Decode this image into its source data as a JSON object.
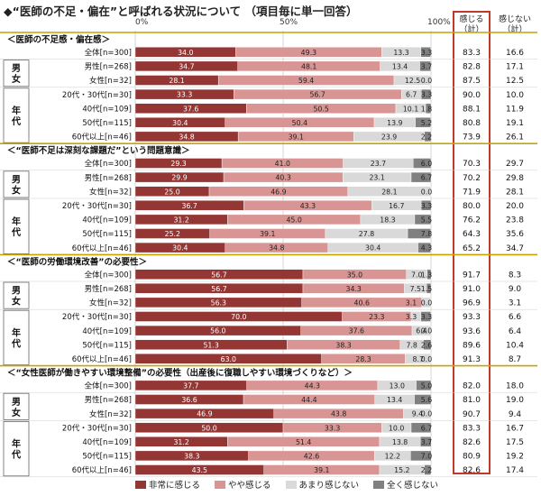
{
  "title": "◆“医師の不足・偏在”と呼ばれる状況について （項目毎に単一回答）",
  "axis": {
    "t0": "0%",
    "t50": "50%",
    "t100": "100%"
  },
  "headers": {
    "col1": "感じる\n（計）",
    "col2": "感じない\n（計）"
  },
  "colors": {
    "s1": "#943634",
    "s2": "#d99594",
    "s3": "#d9d9d9",
    "s4": "#808080",
    "sep": "#c9a400",
    "box": "#c0392b"
  },
  "chart_data": {
    "type": "bar",
    "orientation": "horizontal-stacked-100",
    "series": [
      {
        "name": "非常に感じる"
      },
      {
        "name": "やや感じる"
      },
      {
        "name": "あまり感じない"
      },
      {
        "name": "全く感じない"
      }
    ],
    "xlim": [
      0,
      100
    ],
    "sections": [
      {
        "title": "＜医師の不足感・偏在感＞",
        "groups": [
          {
            "label": "",
            "rows": [
              {
                "label": "全体[n=300]",
                "values": [
                  34.0,
                  49.3,
                  13.3,
                  3.3
                ],
                "yes": "83.3",
                "no": "16.6"
              }
            ]
          },
          {
            "label": "男女",
            "rows": [
              {
                "label": "男性[n=268]",
                "values": [
                  34.7,
                  48.1,
                  13.4,
                  3.7
                ],
                "yes": "82.8",
                "no": "17.1"
              },
              {
                "label": "女性[n=32]",
                "values": [
                  28.1,
                  59.4,
                  12.5,
                  0.0
                ],
                "yes": "87.5",
                "no": "12.5"
              }
            ]
          },
          {
            "label": "年代",
            "rows": [
              {
                "label": "20代・30代[n=30]",
                "values": [
                  33.3,
                  56.7,
                  6.7,
                  3.3
                ],
                "yes": "90.0",
                "no": "10.0"
              },
              {
                "label": "40代[n=109]",
                "values": [
                  37.6,
                  50.5,
                  10.1,
                  1.8
                ],
                "yes": "88.1",
                "no": "11.9"
              },
              {
                "label": "50代[n=115]",
                "values": [
                  30.4,
                  50.4,
                  13.9,
                  5.2
                ],
                "yes": "80.8",
                "no": "19.1"
              },
              {
                "label": "60代以上[n=46]",
                "values": [
                  34.8,
                  39.1,
                  23.9,
                  2.2
                ],
                "yes": "73.9",
                "no": "26.1"
              }
            ]
          }
        ]
      },
      {
        "title": "＜“医師不足は深刻な課題だ”という問題意識＞",
        "groups": [
          {
            "label": "",
            "rows": [
              {
                "label": "全体[n=300]",
                "values": [
                  29.3,
                  41.0,
                  23.7,
                  6.0
                ],
                "yes": "70.3",
                "no": "29.7"
              }
            ]
          },
          {
            "label": "男女",
            "rows": [
              {
                "label": "男性[n=268]",
                "values": [
                  29.9,
                  40.3,
                  23.1,
                  6.7
                ],
                "yes": "70.2",
                "no": "29.8"
              },
              {
                "label": "女性[n=32]",
                "values": [
                  25.0,
                  46.9,
                  28.1,
                  0.0
                ],
                "yes": "71.9",
                "no": "28.1"
              }
            ]
          },
          {
            "label": "年代",
            "rows": [
              {
                "label": "20代・30代[n=30]",
                "values": [
                  36.7,
                  43.3,
                  16.7,
                  3.3
                ],
                "yes": "80.0",
                "no": "20.0"
              },
              {
                "label": "40代[n=109]",
                "values": [
                  31.2,
                  45.0,
                  18.3,
                  5.5
                ],
                "yes": "76.2",
                "no": "23.8"
              },
              {
                "label": "50代[n=115]",
                "values": [
                  25.2,
                  39.1,
                  27.8,
                  7.8
                ],
                "yes": "64.3",
                "no": "35.6"
              },
              {
                "label": "60代以上[n=46]",
                "values": [
                  30.4,
                  34.8,
                  30.4,
                  4.3
                ],
                "yes": "65.2",
                "no": "34.7"
              }
            ]
          }
        ]
      },
      {
        "title": "＜“医師の労働環境改善”の必要性＞",
        "groups": [
          {
            "label": "",
            "rows": [
              {
                "label": "全体[n=300]",
                "values": [
                  56.7,
                  35.0,
                  7.0,
                  1.3
                ],
                "yes": "91.7",
                "no": "8.3"
              }
            ]
          },
          {
            "label": "男女",
            "rows": [
              {
                "label": "男性[n=268]",
                "values": [
                  56.7,
                  34.3,
                  7.5,
                  1.5
                ],
                "yes": "91.0",
                "no": "9.0"
              },
              {
                "label": "女性[n=32]",
                "values": [
                  56.3,
                  40.6,
                  3.1,
                  0.0
                ],
                "yes": "96.9",
                "no": "3.1"
              }
            ]
          },
          {
            "label": "年代",
            "rows": [
              {
                "label": "20代・30代[n=30]",
                "values": [
                  70.0,
                  23.3,
                  3.3,
                  3.3
                ],
                "yes": "93.3",
                "no": "6.6"
              },
              {
                "label": "40代[n=109]",
                "values": [
                  56.0,
                  37.6,
                  6.4,
                  0.0
                ],
                "yes": "93.6",
                "no": "6.4"
              },
              {
                "label": "50代[n=115]",
                "values": [
                  51.3,
                  38.3,
                  7.8,
                  2.6
                ],
                "yes": "89.6",
                "no": "10.4"
              },
              {
                "label": "60代以上[n=46]",
                "values": [
                  63.0,
                  28.3,
                  8.7,
                  0.0
                ],
                "yes": "91.3",
                "no": "8.7"
              }
            ]
          }
        ]
      },
      {
        "title": "＜“女性医師が働きやすい環境整備”の必要性（出産後に復職しやすい環境づくりなど）＞",
        "groups": [
          {
            "label": "",
            "rows": [
              {
                "label": "全体[n=300]",
                "values": [
                  37.7,
                  44.3,
                  13.0,
                  5.0
                ],
                "yes": "82.0",
                "no": "18.0"
              }
            ]
          },
          {
            "label": "男女",
            "rows": [
              {
                "label": "男性[n=268]",
                "values": [
                  36.6,
                  44.4,
                  13.4,
                  5.6
                ],
                "yes": "81.0",
                "no": "19.0"
              },
              {
                "label": "女性[n=32]",
                "values": [
                  46.9,
                  43.8,
                  9.4,
                  0.0
                ],
                "yes": "90.7",
                "no": "9.4"
              }
            ]
          },
          {
            "label": "年代",
            "rows": [
              {
                "label": "20代・30代[n=30]",
                "values": [
                  50.0,
                  33.3,
                  10.0,
                  6.7
                ],
                "yes": "83.3",
                "no": "16.7"
              },
              {
                "label": "40代[n=109]",
                "values": [
                  31.2,
                  51.4,
                  13.8,
                  3.7
                ],
                "yes": "82.6",
                "no": "17.5"
              },
              {
                "label": "50代[n=115]",
                "values": [
                  38.3,
                  42.6,
                  12.2,
                  7.0
                ],
                "yes": "80.9",
                "no": "19.2"
              },
              {
                "label": "60代以上[n=46]",
                "values": [
                  43.5,
                  39.1,
                  15.2,
                  2.2
                ],
                "yes": "82.6",
                "no": "17.4"
              }
            ]
          }
        ]
      }
    ]
  }
}
